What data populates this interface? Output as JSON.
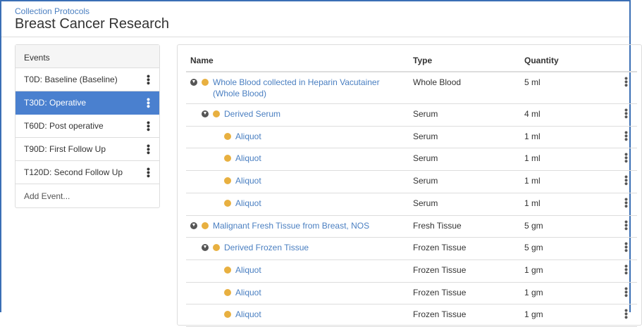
{
  "breadcrumb": "Collection Protocols",
  "title": "Breast Cancer Research",
  "events": {
    "header": "Events",
    "items": [
      {
        "label": "T0D: Baseline (Baseline)",
        "active": false
      },
      {
        "label": "T30D: Operative",
        "active": true
      },
      {
        "label": "T60D: Post operative",
        "active": false
      },
      {
        "label": "T90D: First Follow Up",
        "active": false
      },
      {
        "label": "T120D: Second Follow Up",
        "active": false
      }
    ],
    "add": "Add Event..."
  },
  "table": {
    "columns": [
      "Name",
      "Type",
      "Quantity"
    ],
    "rows": [
      {
        "name": "Whole Blood collected in Heparin Vacutainer (Whole Blood)",
        "type": "Whole Blood",
        "qty": "5 ml",
        "level": 0,
        "expand": true
      },
      {
        "name": "Derived Serum",
        "type": "Serum",
        "qty": "4 ml",
        "level": 1,
        "expand": true
      },
      {
        "name": "Aliquot",
        "type": "Serum",
        "qty": "1 ml",
        "level": 2,
        "expand": false
      },
      {
        "name": "Aliquot",
        "type": "Serum",
        "qty": "1 ml",
        "level": 2,
        "expand": false
      },
      {
        "name": "Aliquot",
        "type": "Serum",
        "qty": "1 ml",
        "level": 2,
        "expand": false
      },
      {
        "name": "Aliquot",
        "type": "Serum",
        "qty": "1 ml",
        "level": 2,
        "expand": false
      },
      {
        "name": "Malignant Fresh Tissue from Breast, NOS",
        "type": "Fresh Tissue",
        "qty": "5 gm",
        "level": 0,
        "expand": true
      },
      {
        "name": "Derived Frozen Tissue",
        "type": "Frozen Tissue",
        "qty": "5 gm",
        "level": 1,
        "expand": true
      },
      {
        "name": "Aliquot",
        "type": "Frozen Tissue",
        "qty": "1 gm",
        "level": 2,
        "expand": false
      },
      {
        "name": "Aliquot",
        "type": "Frozen Tissue",
        "qty": "1 gm",
        "level": 2,
        "expand": false
      },
      {
        "name": "Aliquot",
        "type": "Frozen Tissue",
        "qty": "1 gm",
        "level": 2,
        "expand": false
      }
    ]
  },
  "colors": {
    "accent": "#4a80cf",
    "link": "#4a7fc1",
    "status_dot": "#e8b040"
  }
}
